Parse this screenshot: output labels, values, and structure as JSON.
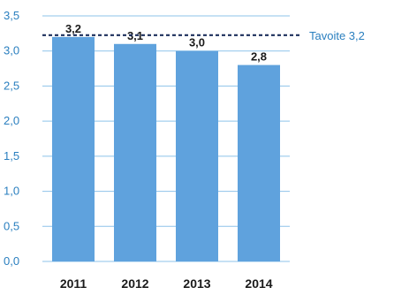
{
  "chart_data": {
    "type": "bar",
    "categories": [
      "2011",
      "2012",
      "2013",
      "2014"
    ],
    "values": [
      3.2,
      3.1,
      3.0,
      2.8
    ],
    "value_labels": [
      "3,2",
      "3,1",
      "3,0",
      "2,8"
    ],
    "title": "",
    "xlabel": "",
    "ylabel": "",
    "ylim": [
      0,
      3.5
    ],
    "yticks": [
      0,
      0.5,
      1.0,
      1.5,
      2.0,
      2.5,
      3.0,
      3.5
    ],
    "ytick_labels": [
      "0,0",
      "0,5",
      "1,0",
      "1,5",
      "2,0",
      "2,5",
      "3,0",
      "3,5"
    ],
    "grid": true,
    "target": {
      "value": 3.2,
      "label": "Tavoite 3,2"
    },
    "colors": {
      "bar": "#5fa2dd",
      "grid": "#8ec3ea",
      "target_line": "#1c2f5c",
      "tick_text": "#2a7fbf"
    }
  }
}
